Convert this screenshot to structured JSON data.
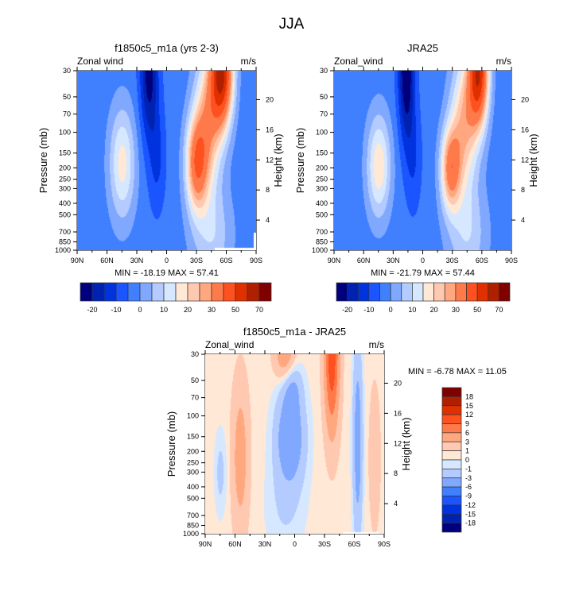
{
  "title": "JJA",
  "palette_main": [
    "#00007f",
    "#0022b0",
    "#0033dd",
    "#1a55ff",
    "#4080ff",
    "#80a8ff",
    "#b3cbff",
    "#d6e8ff",
    "#ffe8d6",
    "#ffc8b0",
    "#ffa880",
    "#ff7a4a",
    "#ff5020",
    "#e03000",
    "#b02000",
    "#800000"
  ],
  "chart_data": [
    {
      "type": "heatmap",
      "title": "f1850c5_m1a (yrs 2-3)",
      "left_label": "Zonal wind",
      "units": "m/s",
      "xlabel": "",
      "ylabel": "Pressure (mb)",
      "ylabel_right": "Height (km)",
      "x_ticks": [
        "90N",
        "60N",
        "30N",
        "0",
        "30S",
        "60S",
        "90S"
      ],
      "y_ticks": [
        30,
        50,
        70,
        100,
        150,
        200,
        250,
        300,
        400,
        500,
        700,
        850,
        1000
      ],
      "y_right_ticks": [
        4,
        8,
        12,
        16,
        20
      ],
      "ylim": [
        1000,
        30
      ],
      "stats": "MIN = -18.19  MAX =  57.41",
      "min": -18.19,
      "max": 57.41,
      "levels": [
        -20,
        -15,
        -10,
        -5,
        0,
        5,
        10,
        15,
        20,
        25,
        30,
        40,
        50,
        60,
        70
      ],
      "colorbar_labels": [
        "-20",
        "-10",
        "0",
        "10",
        "20",
        "30",
        "50",
        "70"
      ]
    },
    {
      "type": "heatmap",
      "title": "JRA25",
      "left_label": "Zonal_wind",
      "units": "m/s",
      "xlabel": "",
      "ylabel": "Pressure (mb)",
      "ylabel_right": "Height (km)",
      "x_ticks": [
        "90N",
        "60N",
        "30N",
        "0",
        "30S",
        "60S",
        "90S"
      ],
      "y_ticks": [
        30,
        50,
        70,
        100,
        150,
        200,
        250,
        300,
        400,
        500,
        700,
        850,
        1000
      ],
      "y_right_ticks": [
        4,
        8,
        12,
        16,
        20
      ],
      "ylim": [
        1000,
        30
      ],
      "stats": "MIN = -21.79  MAX =  57.44",
      "min": -21.79,
      "max": 57.44,
      "levels": [
        -20,
        -15,
        -10,
        -5,
        0,
        5,
        10,
        15,
        20,
        25,
        30,
        40,
        50,
        60,
        70
      ],
      "colorbar_labels": [
        "-20",
        "-10",
        "0",
        "10",
        "20",
        "30",
        "50",
        "70"
      ]
    },
    {
      "type": "heatmap",
      "title": "f1850c5_m1a - JRA25",
      "left_label": "Zonal_wind",
      "units": "m/s",
      "xlabel": "",
      "ylabel": "Pressure (mb)",
      "ylabel_right": "Height (km)",
      "x_ticks": [
        "90N",
        "60N",
        "30N",
        "0",
        "30S",
        "60S",
        "90S"
      ],
      "y_ticks": [
        30,
        50,
        70,
        100,
        150,
        200,
        250,
        300,
        400,
        500,
        700,
        850,
        1000
      ],
      "y_right_ticks": [
        4,
        8,
        12,
        16,
        20
      ],
      "ylim": [
        1000,
        30
      ],
      "stats": "MIN =  -6.78  MAX =  11.05",
      "min": -6.78,
      "max": 11.05,
      "levels": [
        -18,
        -15,
        -12,
        -9,
        -6,
        -3,
        -1,
        0,
        1,
        3,
        6,
        9,
        12,
        15,
        18
      ],
      "colorbar_labels": [
        "18",
        "15",
        "12",
        "9",
        "6",
        "3",
        "1",
        "0",
        "-1",
        "-3",
        "-6",
        "-9",
        "-12",
        "-15",
        "-18"
      ]
    }
  ]
}
